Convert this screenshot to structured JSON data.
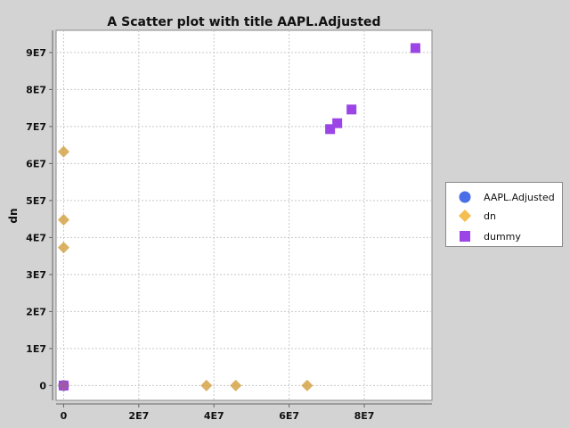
{
  "chart_data": {
    "type": "scatter",
    "title": "A Scatter plot with title AAPL.Adjusted",
    "xlabel": "",
    "ylabel": "dn",
    "xlim": [
      -2000000,
      98000000
    ],
    "ylim": [
      -4000000,
      96000000
    ],
    "x_ticks": [
      "0",
      "2E7",
      "4E7",
      "6E7",
      "8E7"
    ],
    "x_tick_values": [
      0,
      20000000,
      40000000,
      60000000,
      80000000
    ],
    "y_ticks": [
      "0",
      "1E7",
      "2E7",
      "3E7",
      "4E7",
      "5E7",
      "6E7",
      "7E7",
      "8E7",
      "9E7"
    ],
    "y_tick_values": [
      0,
      10000000,
      20000000,
      30000000,
      40000000,
      50000000,
      60000000,
      70000000,
      80000000,
      90000000
    ],
    "grid": true,
    "legend_position": "right",
    "series": [
      {
        "name": "AAPL.Adjusted",
        "marker": "circle",
        "color": "#4a6ee8",
        "points": [
          [
            0,
            0
          ],
          [
            0,
            0
          ]
        ]
      },
      {
        "name": "dn",
        "marker": "diamond",
        "color": "#f5be50",
        "points": [
          [
            0,
            63200000
          ],
          [
            0,
            44800000
          ],
          [
            0,
            37300000
          ],
          [
            38000000,
            0
          ],
          [
            45800000,
            0
          ],
          [
            64800000,
            0
          ],
          [
            0,
            0
          ]
        ]
      },
      {
        "name": "dummy",
        "marker": "square",
        "color": "#9b45e6",
        "points": [
          [
            93600000,
            91200000
          ],
          [
            76600000,
            74600000
          ],
          [
            72800000,
            70900000
          ],
          [
            70900000,
            69300000
          ],
          [
            0,
            0
          ]
        ]
      }
    ]
  }
}
